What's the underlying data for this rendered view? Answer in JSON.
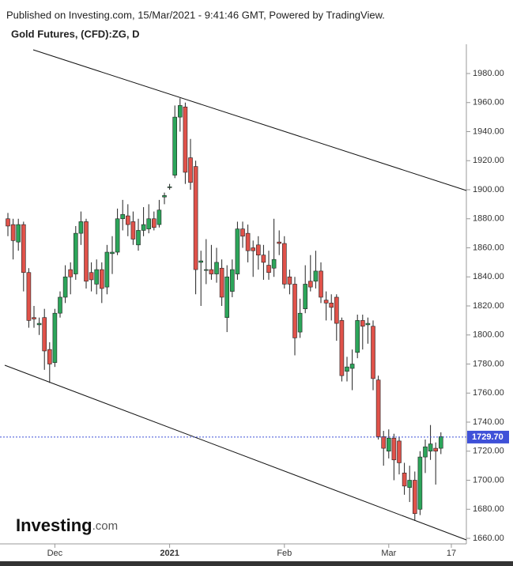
{
  "header": {
    "published": "Published on Investing.com, 15/Mar/2021 - 9:41:46 GMT, Powered by TradingView."
  },
  "logo": {
    "name": "Investing",
    "suffix": ".com"
  },
  "chart_data": {
    "type": "candlestick",
    "title": "Gold Futures, (CFD):ZG, D",
    "categories": [
      null,
      null,
      null,
      null,
      null,
      null,
      null,
      null,
      null,
      "Dec",
      null,
      null,
      null,
      null,
      null,
      null,
      null,
      null,
      null,
      null,
      null,
      null,
      null,
      null,
      null,
      null,
      null,
      null,
      null,
      null,
      null,
      "2021",
      null,
      null,
      null,
      null,
      null,
      null,
      null,
      null,
      null,
      null,
      null,
      null,
      null,
      null,
      null,
      null,
      null,
      null,
      null,
      null,
      null,
      "Feb",
      null,
      null,
      null,
      null,
      null,
      null,
      null,
      null,
      null,
      null,
      null,
      null,
      null,
      null,
      null,
      null,
      null,
      null,
      null,
      "Mar",
      null,
      null,
      null,
      null,
      null,
      null,
      null,
      null,
      null,
      null,
      null,
      "17"
    ],
    "open": [
      1880,
      1876,
      1864,
      1876,
      1843,
      1812,
      1807,
      1812,
      1790,
      1781,
      1815,
      1826,
      1845,
      1842,
      1870,
      1878,
      1843,
      1835,
      1845,
      1833,
      1856,
      1857,
      1880,
      1882,
      1878,
      1862,
      1872,
      1873,
      1880,
      1876,
      1895,
      1902,
      1910,
      1950,
      1957,
      1922,
      1916,
      1850,
      1845,
      1845,
      1842,
      1846,
      1812,
      1830,
      1842,
      1873,
      1870,
      1860,
      1862,
      1855,
      1848,
      1846,
      1864,
      1863,
      1840,
      1835,
      1802,
      1818,
      1837,
      1837,
      1844,
      1824,
      1822,
      1826,
      1810,
      1775,
      1777,
      1788,
      1810,
      1807,
      1806,
      1769,
      1730,
      1720,
      1729,
      1727,
      1705,
      1695,
      1700,
      1680,
      1716,
      1720,
      1722,
      1722,
      null,
      null
    ],
    "high": [
      1884,
      1880,
      1880,
      1878,
      1846,
      1820,
      1812,
      1818,
      1795,
      1818,
      1830,
      1848,
      1850,
      1875,
      1885,
      1880,
      1850,
      1852,
      1850,
      1862,
      1868,
      1887,
      1893,
      1890,
      1885,
      1880,
      1888,
      1890,
      1885,
      1893,
      1898,
      1904,
      1958,
      1963,
      1960,
      1935,
      1920,
      1858,
      1866,
      1862,
      1860,
      1852,
      1848,
      1852,
      1878,
      1878,
      1876,
      1865,
      1868,
      1862,
      1858,
      1880,
      1872,
      1868,
      1845,
      1840,
      1825,
      1848,
      1855,
      1858,
      1850,
      1830,
      1828,
      1828,
      1812,
      1785,
      1790,
      1814,
      1814,
      1812,
      1810,
      1772,
      1734,
      1735,
      1732,
      1730,
      1712,
      1710,
      1706,
      1720,
      1728,
      1738,
      1726,
      1733,
      null,
      null
    ],
    "low": [
      1868,
      1852,
      1858,
      1830,
      1805,
      1805,
      1800,
      1776,
      1767,
      1778,
      1812,
      1822,
      1828,
      1838,
      1862,
      1832,
      1830,
      1828,
      1822,
      1828,
      1842,
      1855,
      1872,
      1868,
      1862,
      1858,
      1868,
      1870,
      1872,
      1874,
      1890,
      1900,
      1908,
      1940,
      1904,
      1900,
      1828,
      1820,
      1835,
      1838,
      1836,
      1820,
      1802,
      1826,
      1838,
      1860,
      1850,
      1840,
      1845,
      1838,
      1838,
      1840,
      1855,
      1832,
      1828,
      1786,
      1798,
      1815,
      1830,
      1832,
      1822,
      1810,
      1810,
      1796,
      1768,
      1768,
      1762,
      1784,
      1790,
      1794,
      1762,
      1728,
      1710,
      1715,
      1700,
      1704,
      1690,
      1685,
      1672,
      1676,
      1705,
      1714,
      1697,
      1718,
      null,
      null
    ],
    "close": [
      1875,
      1865,
      1876,
      1843,
      1810,
      1811,
      1808,
      1789,
      1780,
      1815,
      1826,
      1840,
      1840,
      1870,
      1878,
      1837,
      1838,
      1845,
      1832,
      1857,
      1857,
      1880,
      1883,
      1876,
      1866,
      1872,
      1876,
      1880,
      1874,
      1886,
      1896,
      1902,
      1950,
      1958,
      1912,
      1905,
      1845,
      1851,
      1845,
      1842,
      1850,
      1826,
      1840,
      1845,
      1873,
      1868,
      1858,
      1858,
      1855,
      1850,
      1843,
      1852,
      1863,
      1835,
      1835,
      1798,
      1815,
      1835,
      1833,
      1844,
      1826,
      1822,
      1819,
      1808,
      1772,
      1778,
      1780,
      1810,
      1806,
      1808,
      1770,
      1730,
      1722,
      1729,
      1714,
      1712,
      1696,
      1700,
      1677,
      1716,
      1723,
      1725,
      1720,
      1730,
      null,
      null
    ],
    "up_color": "#2ca55a",
    "down_color": "#e0524a",
    "last_price": {
      "value": 1729.7,
      "label": "1729.70"
    },
    "last_price_color": "#3f51d8",
    "ylim": [
      1654,
      1996
    ],
    "yticks": [
      {
        "value": 1660,
        "label": "1660.00"
      },
      {
        "value": 1680,
        "label": "1680.00"
      },
      {
        "value": 1700,
        "label": "1700.00"
      },
      {
        "value": 1720,
        "label": "1720.00"
      },
      {
        "value": 1740,
        "label": "1740.00"
      },
      {
        "value": 1760,
        "label": "1760.00"
      },
      {
        "value": 1780,
        "label": "1780.00"
      },
      {
        "value": 1800,
        "label": "1800.00"
      },
      {
        "value": 1820,
        "label": "1820.00"
      },
      {
        "value": 1840,
        "label": "1840.00"
      },
      {
        "value": 1860,
        "label": "1860.00"
      },
      {
        "value": 1880,
        "label": "1880.00"
      },
      {
        "value": 1900,
        "label": "1900.00"
      },
      {
        "value": 1920,
        "label": "1920.00"
      },
      {
        "value": 1940,
        "label": "1940.00"
      },
      {
        "value": 1960,
        "label": "1960.00"
      },
      {
        "value": 1980,
        "label": "1980.00"
      }
    ]
  }
}
